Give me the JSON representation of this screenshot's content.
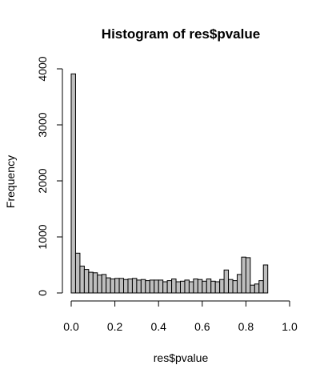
{
  "chart_data": {
    "type": "bar",
    "title": "Histogram of res$pvalue",
    "xlabel": "res$pvalue",
    "ylabel": "Frequency",
    "xlim": [
      0,
      1
    ],
    "ylim": [
      0,
      4000
    ],
    "xticks": [
      "0.0",
      "0.2",
      "0.4",
      "0.6",
      "0.8",
      "1.0"
    ],
    "yticks": [
      "0",
      "1000",
      "2000",
      "3000",
      "4000"
    ],
    "bin_width": 0.02,
    "bin_start": 0,
    "values": [
      3910,
      710,
      480,
      420,
      370,
      360,
      320,
      330,
      270,
      250,
      260,
      260,
      240,
      250,
      260,
      230,
      240,
      220,
      230,
      230,
      230,
      200,
      220,
      250,
      200,
      210,
      230,
      200,
      250,
      240,
      210,
      250,
      210,
      200,
      240,
      410,
      240,
      220,
      330,
      640,
      630,
      140,
      160,
      220,
      500
    ],
    "grid": false,
    "legend": "none"
  }
}
